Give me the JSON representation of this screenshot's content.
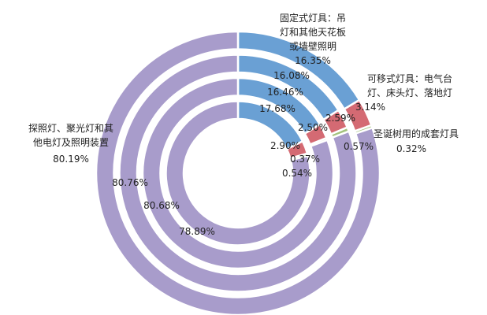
{
  "chart_data": {
    "type": "pie",
    "style": "multi-ring doughnut",
    "categories": [
      "固定式灯具：吊灯和其他天花板或墙壁照明",
      "可移式灯具：电气台灯、床头灯、落地灯",
      "圣诞树用的成套灯具",
      "探照灯、聚光灯和其他电灯及照明装置"
    ],
    "category_lines": [
      [
        "固定式灯具：吊",
        "灯和其他天花板",
        "或墙壁照明"
      ],
      [
        "可移式灯具：电气台",
        "灯、床头灯、落地灯"
      ],
      [
        "圣诞树用的成套灯具"
      ],
      [
        "探照灯、聚光灯和其",
        "他电灯及照明装置"
      ]
    ],
    "colors": [
      "#6aa0d4",
      "#d46a73",
      "#a3c37d",
      "#a89ccb"
    ],
    "series": [
      {
        "values": [
          16.35,
          3.14,
          0.32,
          80.19
        ],
        "labels": [
          "16.35%",
          "3.14%",
          "0.32%",
          "80.19%"
        ]
      },
      {
        "values": [
          16.08,
          2.59,
          0.57,
          80.76
        ],
        "labels": [
          "16.08%",
          "2.59%",
          "0.57%",
          "80.76%"
        ]
      },
      {
        "values": [
          16.46,
          2.5,
          0.37,
          80.68
        ],
        "labels": [
          "16.46%",
          "2.50%",
          "0.37%",
          "80.68%"
        ]
      },
      {
        "values": [
          17.68,
          2.9,
          0.54,
          78.89
        ],
        "labels": [
          "17.68%",
          "2.90%",
          "0.54%",
          "78.89%"
        ]
      }
    ]
  }
}
